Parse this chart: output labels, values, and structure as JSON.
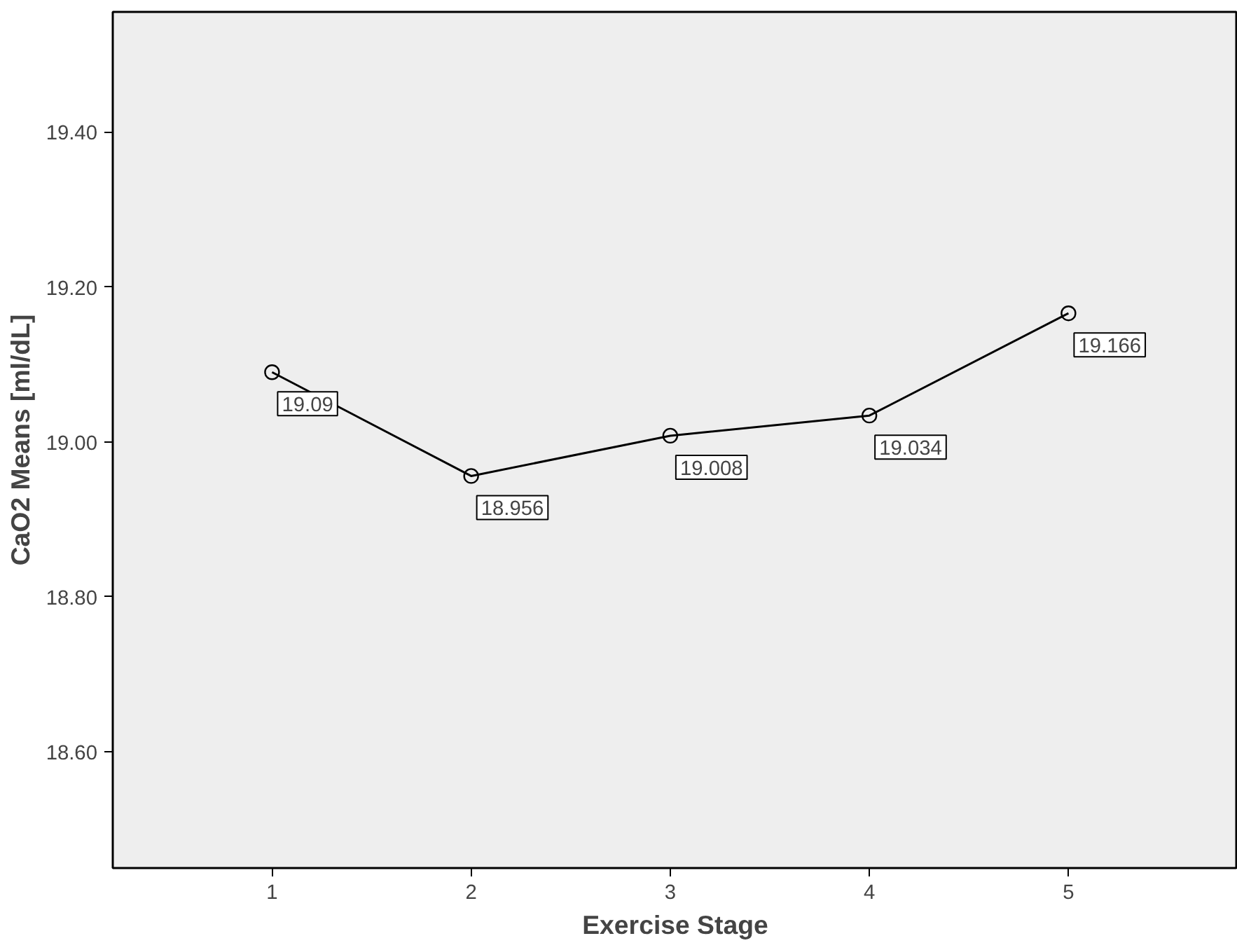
{
  "chart_data": {
    "type": "line",
    "xlabel": "Exercise Stage",
    "ylabel": "CaO2 Means [ml/dL]",
    "x": [
      1,
      2,
      3,
      4,
      5
    ],
    "series": [
      {
        "color": "#000000",
        "values": [
          19.09,
          18.956,
          19.008,
          19.034,
          19.166
        ]
      }
    ],
    "xlim": [
      0.2,
      5.85
    ],
    "xticks": [
      1,
      2,
      3,
      4,
      5
    ],
    "ylim": [
      18.45,
      19.555
    ],
    "yticks": [
      {
        "value": 18.6,
        "label": "18.60"
      },
      {
        "value": 18.8,
        "label": "18.80"
      },
      {
        "value": 19.0,
        "label": "19.00"
      },
      {
        "value": 19.2,
        "label": "19.20"
      },
      {
        "value": 19.4,
        "label": "19.40"
      }
    ],
    "marker": "circle",
    "line_style": "solid",
    "grid": false,
    "data_labels": true
  }
}
